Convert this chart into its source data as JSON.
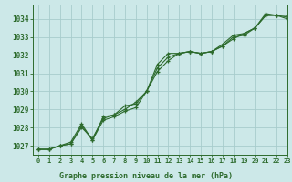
{
  "xlabel": "Graphe pression niveau de la mer (hPa)",
  "background_color": "#cce8e8",
  "grid_color": "#a8cccc",
  "line_color": "#2d6b2d",
  "xlim": [
    -0.5,
    23
  ],
  "ylim": [
    1026.5,
    1034.8
  ],
  "yticks": [
    1027,
    1028,
    1029,
    1030,
    1031,
    1032,
    1033,
    1034
  ],
  "xticks": [
    0,
    1,
    2,
    3,
    4,
    5,
    6,
    7,
    8,
    9,
    10,
    11,
    12,
    13,
    14,
    15,
    16,
    17,
    18,
    19,
    20,
    21,
    22,
    23
  ],
  "series": [
    [
      1026.8,
      1026.8,
      1027.0,
      1027.2,
      1028.2,
      1027.3,
      1028.6,
      1028.7,
      1029.2,
      1029.3,
      1030.0,
      1031.5,
      1032.1,
      1032.1,
      1032.2,
      1032.1,
      1032.2,
      1032.6,
      1033.1,
      1033.2,
      1033.5,
      1034.2,
      1034.2,
      1034.2
    ],
    [
      1026.8,
      1026.8,
      1027.0,
      1027.1,
      1028.0,
      1027.4,
      1028.5,
      1028.7,
      1029.0,
      1029.4,
      1030.0,
      1031.3,
      1031.9,
      1032.1,
      1032.2,
      1032.1,
      1032.2,
      1032.5,
      1032.9,
      1033.2,
      1033.5,
      1034.3,
      1034.2,
      1034.1
    ],
    [
      1026.8,
      1026.8,
      1027.0,
      1027.1,
      1028.1,
      1027.3,
      1028.4,
      1028.6,
      1028.9,
      1029.1,
      1030.0,
      1031.1,
      1031.7,
      1032.1,
      1032.2,
      1032.1,
      1032.2,
      1032.5,
      1033.0,
      1033.1,
      1033.5,
      1034.2,
      1034.2,
      1034.0
    ]
  ]
}
